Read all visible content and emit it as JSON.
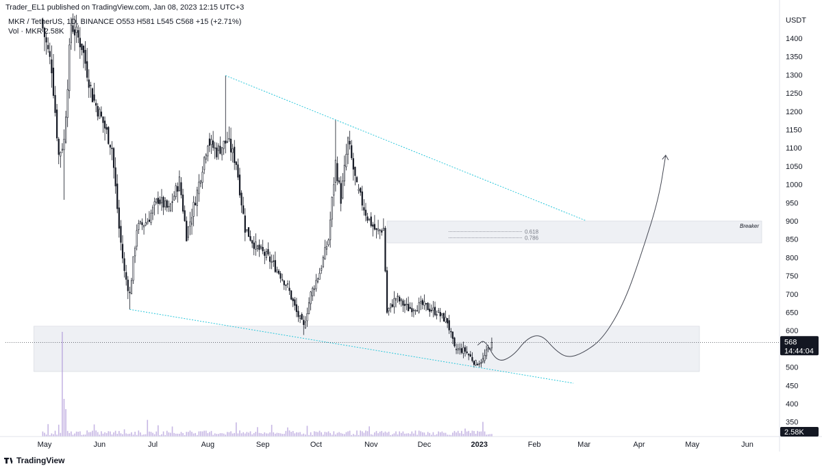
{
  "header": {
    "publisher": "Trader_EL1 published on TradingView.com, Jan 08, 2023 12:15 UTC+3",
    "symbol_line": "MKR / TetherUS, 1D, BINANCE  O553  H581  L545  C568  +15 (+2.71%)",
    "vol_line": "Vol · MKR  2.58K",
    "currency": "USDT"
  },
  "footer": {
    "brand": "TradingView",
    "icon": "tradingview-logo-icon"
  },
  "colors": {
    "candle": "#131722",
    "trendline": "#26c6da",
    "zone_fill": "#eef0f4",
    "volume": "#b39ddb",
    "price_label_bg": "#131722"
  },
  "chart_data": {
    "type": "candlestick",
    "symbol": "MKR / TetherUS",
    "interval": "1D",
    "exchange": "BINANCE",
    "ohlc_last": {
      "open": 553,
      "high": 581,
      "low": 545,
      "close": 568,
      "change": 15,
      "change_pct": 2.71
    },
    "current_price_label": "568",
    "countdown_label": "14:44:04",
    "volume_label": "2.58K",
    "y_axis": {
      "ticks": [
        350,
        400,
        450,
        500,
        550,
        600,
        650,
        700,
        750,
        800,
        850,
        900,
        950,
        1000,
        1050,
        1100,
        1150,
        1200,
        1250,
        1300,
        1350,
        1400
      ]
    },
    "x_axis": {
      "ticks": [
        {
          "label": "May",
          "date": "2022-05-01"
        },
        {
          "label": "Jun",
          "date": "2022-06-01"
        },
        {
          "label": "Jul",
          "date": "2022-07-01"
        },
        {
          "label": "Aug",
          "date": "2022-08-01"
        },
        {
          "label": "Sep",
          "date": "2022-09-01"
        },
        {
          "label": "Oct",
          "date": "2022-10-01"
        },
        {
          "label": "Nov",
          "date": "2022-11-01"
        },
        {
          "label": "Dec",
          "date": "2022-12-01"
        },
        {
          "label": "2023",
          "date": "2023-01-01",
          "bold": true
        },
        {
          "label": "Feb",
          "date": "2023-02-01"
        },
        {
          "label": "Mar",
          "date": "2023-03-01"
        },
        {
          "label": "Apr",
          "date": "2023-04-01"
        },
        {
          "label": "May",
          "date": "2023-05-01"
        },
        {
          "label": "Jun",
          "date": "2023-06-01"
        }
      ]
    },
    "price_path": [
      {
        "date": "2022-04-29",
        "close": 1450
      },
      {
        "date": "2022-05-05",
        "close": 1320
      },
      {
        "date": "2022-05-09",
        "close": 1080
      },
      {
        "date": "2022-05-12",
        "close": 1120
      },
      {
        "date": "2022-05-16",
        "close": 1440
      },
      {
        "date": "2022-05-22",
        "close": 1380
      },
      {
        "date": "2022-05-28",
        "close": 1240
      },
      {
        "date": "2022-06-03",
        "close": 1170
      },
      {
        "date": "2022-06-08",
        "close": 1100
      },
      {
        "date": "2022-06-12",
        "close": 880
      },
      {
        "date": "2022-06-15",
        "close": 760
      },
      {
        "date": "2022-06-18",
        "close": 700
      },
      {
        "date": "2022-06-22",
        "close": 880
      },
      {
        "date": "2022-06-28",
        "close": 900
      },
      {
        "date": "2022-07-04",
        "close": 960
      },
      {
        "date": "2022-07-10",
        "close": 930
      },
      {
        "date": "2022-07-16",
        "close": 1010
      },
      {
        "date": "2022-07-20",
        "close": 860
      },
      {
        "date": "2022-07-26",
        "close": 980
      },
      {
        "date": "2022-08-01",
        "close": 1120
      },
      {
        "date": "2022-08-06",
        "close": 1090
      },
      {
        "date": "2022-08-12",
        "close": 1120
      },
      {
        "date": "2022-08-17",
        "close": 1060
      },
      {
        "date": "2022-08-22",
        "close": 880
      },
      {
        "date": "2022-08-28",
        "close": 830
      },
      {
        "date": "2022-09-04",
        "close": 800
      },
      {
        "date": "2022-09-10",
        "close": 760
      },
      {
        "date": "2022-09-15",
        "close": 720
      },
      {
        "date": "2022-09-20",
        "close": 650
      },
      {
        "date": "2022-09-24",
        "close": 610
      },
      {
        "date": "2022-09-28",
        "close": 700
      },
      {
        "date": "2022-10-03",
        "close": 760
      },
      {
        "date": "2022-10-08",
        "close": 850
      },
      {
        "date": "2022-10-12",
        "close": 1060
      },
      {
        "date": "2022-10-15",
        "close": 960
      },
      {
        "date": "2022-10-19",
        "close": 1120
      },
      {
        "date": "2022-10-24",
        "close": 990
      },
      {
        "date": "2022-10-30",
        "close": 910
      },
      {
        "date": "2022-11-04",
        "close": 870
      },
      {
        "date": "2022-11-08",
        "close": 880
      },
      {
        "date": "2022-11-10",
        "close": 650
      },
      {
        "date": "2022-11-15",
        "close": 690
      },
      {
        "date": "2022-11-22",
        "close": 660
      },
      {
        "date": "2022-11-30",
        "close": 670
      },
      {
        "date": "2022-12-08",
        "close": 650
      },
      {
        "date": "2022-12-14",
        "close": 625
      },
      {
        "date": "2022-12-18",
        "close": 550
      },
      {
        "date": "2022-12-24",
        "close": 545
      },
      {
        "date": "2022-12-30",
        "close": 510
      },
      {
        "date": "2023-01-03",
        "close": 520
      },
      {
        "date": "2023-01-08",
        "close": 568
      }
    ],
    "zones": [
      {
        "name": "breaker-zone",
        "label": "Breaker",
        "from": "2022-11-10",
        "to": "2023-06-30",
        "low": 840,
        "high": 900
      },
      {
        "name": "support-zone",
        "label": "",
        "from": "2022-04-25",
        "to": "2023-05-05",
        "low": 488,
        "high": 612
      }
    ],
    "fib_levels": [
      {
        "label": "0.618",
        "value": 860
      },
      {
        "label": "0.786",
        "value": 852
      }
    ],
    "trendlines": [
      {
        "name": "upper-trendline",
        "points": [
          {
            "date": "2022-08-11",
            "price": 1298
          },
          {
            "date": "2023-03-02",
            "price": 901
          }
        ]
      },
      {
        "name": "lower-trendline",
        "points": [
          {
            "date": "2022-06-18",
            "price": 658
          },
          {
            "date": "2023-02-23",
            "price": 456
          }
        ]
      }
    ],
    "projection_path": [
      {
        "date": "2022-12-31",
        "price": 560
      },
      {
        "date": "2023-01-04",
        "price": 577
      },
      {
        "date": "2023-01-11",
        "price": 512
      },
      {
        "date": "2023-01-20",
        "price": 530
      },
      {
        "date": "2023-01-28",
        "price": 580
      },
      {
        "date": "2023-02-05",
        "price": 590
      },
      {
        "date": "2023-02-13",
        "price": 545
      },
      {
        "date": "2023-02-20",
        "price": 525
      },
      {
        "date": "2023-03-01",
        "price": 540
      },
      {
        "date": "2023-03-12",
        "price": 580
      },
      {
        "date": "2023-03-24",
        "price": 680
      },
      {
        "date": "2023-04-03",
        "price": 820
      },
      {
        "date": "2023-04-12",
        "price": 960
      },
      {
        "date": "2023-04-16",
        "price": 1080
      }
    ],
    "volume_spike": {
      "date": "2022-05-11",
      "relative": 1.0
    }
  }
}
